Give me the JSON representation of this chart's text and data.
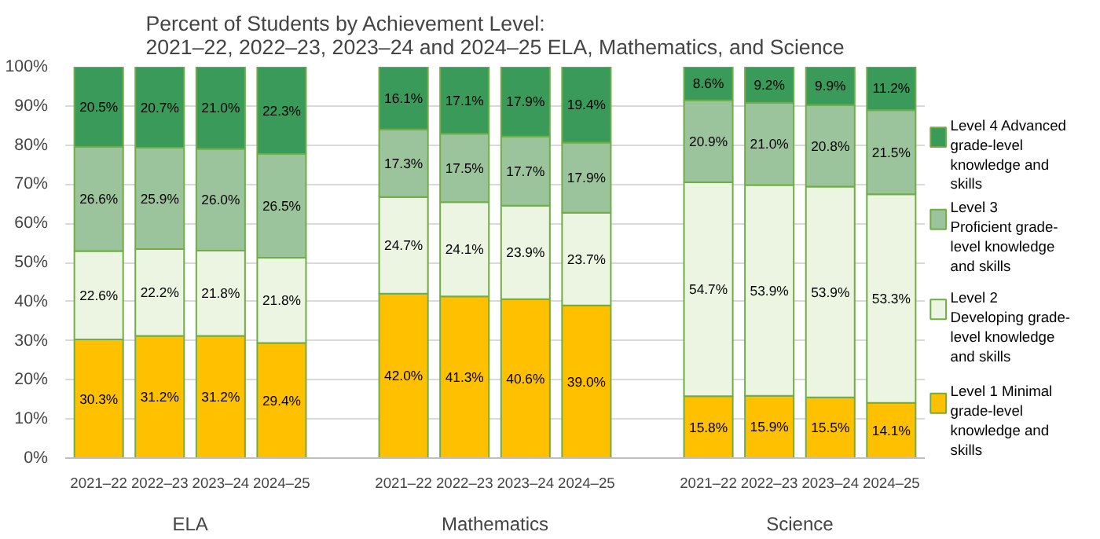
{
  "chart_data": {
    "type": "bar",
    "stacked": true,
    "title": "Percent of Students by Achievement Level:\n2021–22, 2022–23, 2023–24 and 2024–25 ELA, Mathematics, and Science",
    "categories": [
      "2021–22",
      "2022–23",
      "2023–24",
      "2024–25",
      null,
      "2021–22",
      "2022–23",
      "2023–24",
      "2024–25",
      null,
      "2021–22",
      "2022–23",
      "2023–24",
      "2024–25"
    ],
    "annotations": [
      "ELA",
      "Mathematics",
      "Science"
    ],
    "series": [
      {
        "name": "Level 1 Minimal grade-level knowledge and skills",
        "color": "#ffc000",
        "values": [
          30.3,
          31.2,
          31.2,
          29.4,
          null,
          42.0,
          41.3,
          40.6,
          39.0,
          null,
          15.8,
          15.9,
          15.5,
          14.1
        ],
        "value_labels": [
          "30.3%",
          "31.2%",
          "31.2%",
          "29.4%",
          null,
          "42.0%",
          "41.3%",
          "40.6%",
          "39.0%",
          null,
          "15.8%",
          "15.9%",
          "15.5%",
          "14.1%"
        ]
      },
      {
        "name": "Level 2 Developing grade-level knowledge and skills",
        "color": "#ebf5e1",
        "values": [
          22.6,
          22.2,
          21.8,
          21.8,
          null,
          24.7,
          24.1,
          23.9,
          23.7,
          null,
          54.7,
          53.9,
          53.9,
          53.3
        ],
        "value_labels": [
          "22.6%",
          "22.2%",
          "21.8%",
          "21.8%",
          null,
          "24.7%",
          "24.1%",
          "23.9%",
          "23.7%",
          null,
          "54.7%",
          "53.9%",
          "53.9%",
          "53.3%"
        ]
      },
      {
        "name": "Level 3 Proficient grade-level knowledge and skills",
        "color": "#9cc49c",
        "values": [
          26.6,
          25.9,
          26.0,
          26.5,
          null,
          17.3,
          17.5,
          17.7,
          17.9,
          null,
          20.9,
          21.0,
          20.8,
          21.5
        ],
        "value_labels": [
          "26.6%",
          "25.9%",
          "26.0%",
          "26.5%",
          null,
          "17.3%",
          "17.5%",
          "17.7%",
          "17.9%",
          null,
          "20.9%",
          "21.0%",
          "20.8%",
          "21.5%"
        ]
      },
      {
        "name": "Level 4 Advanced grade-level knowledge and skills",
        "color": "#3a9a5a",
        "values": [
          20.5,
          20.7,
          21.0,
          22.3,
          null,
          16.1,
          17.1,
          17.9,
          19.4,
          null,
          8.6,
          9.2,
          9.9,
          11.2
        ],
        "value_labels": [
          "20.5%",
          "20.7%",
          "21.0%",
          "22.3%",
          null,
          "16.1%",
          "17.1%",
          "17.9%",
          "19.4%",
          null,
          "8.6%",
          "9.2%",
          "9.9%",
          "11.2%"
        ]
      }
    ],
    "ylim": [
      0,
      100
    ],
    "yticks": [
      {
        "value": 0,
        "label": "0%"
      },
      {
        "value": 10,
        "label": "10%"
      },
      {
        "value": 20,
        "label": "20%"
      },
      {
        "value": 30,
        "label": "30%"
      },
      {
        "value": 40,
        "label": "40%"
      },
      {
        "value": 50,
        "label": "50%"
      },
      {
        "value": 60,
        "label": "60%"
      },
      {
        "value": 70,
        "label": "70%"
      },
      {
        "value": 80,
        "label": "80%"
      },
      {
        "value": 90,
        "label": "90%"
      },
      {
        "value": 100,
        "label": "100%"
      }
    ],
    "grid": "y",
    "legend": "right"
  }
}
